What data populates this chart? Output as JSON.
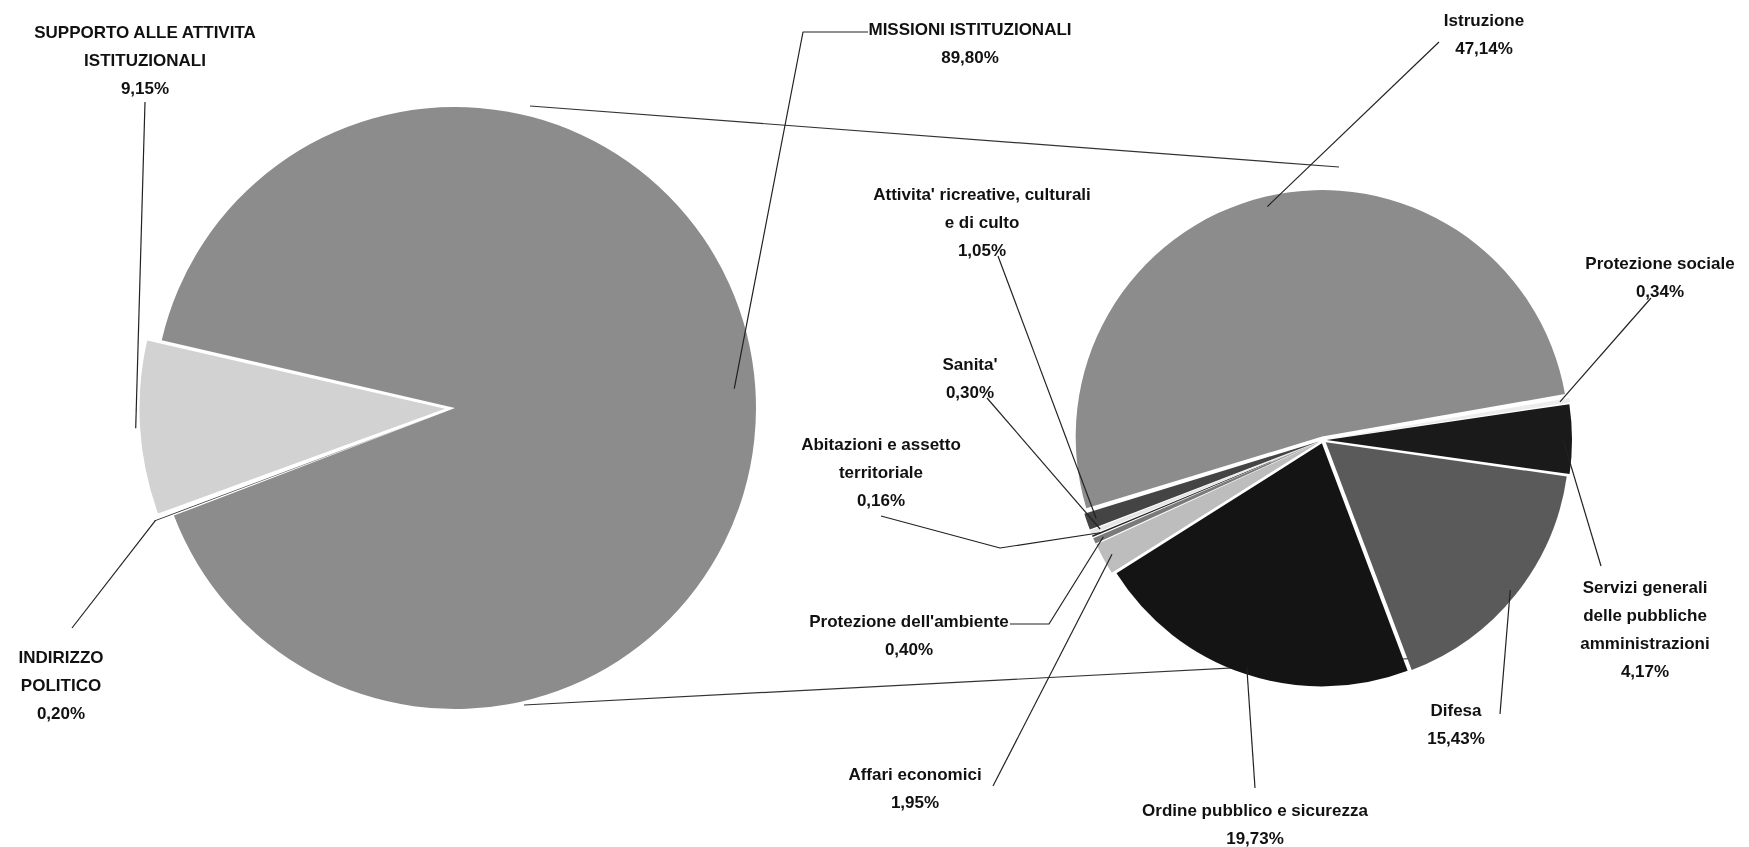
{
  "chart_data": [
    {
      "type": "pie",
      "categories": [
        "MISSIONI ISTITUZIONALI",
        "INDIRIZZO POLITICO",
        "SUPPORTO ALLE ATTIVITA ISTITUZIONALI"
      ],
      "values": [
        89.8,
        0.2,
        9.15
      ],
      "value_labels": [
        "89,80%",
        "0,20%",
        "9,15%"
      ],
      "colors": [
        "#8c8c8c",
        "#1e1e1e",
        "#d2d2d2"
      ]
    },
    {
      "type": "pie",
      "categories": [
        "Istruzione",
        "Protezione sociale",
        "Servizi generali delle pubbliche amministrazioni",
        "Difesa",
        "Ordine pubblico e sicurezza",
        "Affari economici",
        "Protezione dell'ambiente",
        "Abitazioni e assetto territoriale",
        "Sanita'",
        "Attivita' ricreative, culturali e di culto"
      ],
      "values": [
        47.14,
        0.34,
        4.17,
        15.43,
        19.73,
        1.95,
        0.4,
        0.16,
        0.3,
        1.05
      ],
      "value_labels": [
        "47,14%",
        "0,34%",
        "4,17%",
        "15,43%",
        "19,73%",
        "1,95%",
        "0,40%",
        "0,16%",
        "0,30%",
        "1,05%"
      ],
      "colors": [
        "#8c8c8c",
        "#ececec",
        "#1a1a1a",
        "#5a5a5a",
        "#141414",
        "#bdbdbd",
        "#7a7a7a",
        "#262626",
        "#e6e6e6",
        "#444444"
      ]
    }
  ]
}
